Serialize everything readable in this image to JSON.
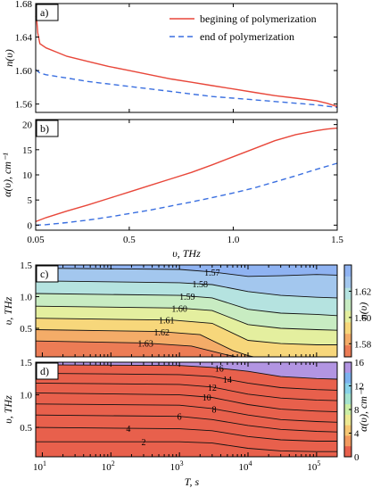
{
  "chart_data": [
    {
      "type": "line",
      "panel_tag": "a)",
      "ylabel": "n(υ)",
      "ylim": [
        1.55,
        1.68
      ],
      "xlim": [
        0.05,
        1.5
      ],
      "yticks": [
        {
          "value": 1.56,
          "label": "1.56"
        },
        {
          "value": 1.6,
          "label": "1.60"
        },
        {
          "value": 1.64,
          "label": "1.64"
        },
        {
          "value": 1.68,
          "label": "1.68"
        }
      ],
      "legend_position": "top-right",
      "series": [
        {
          "name": "begining of polymerization",
          "color": "#e8473a",
          "style": "solid",
          "x": [
            0.05,
            0.055,
            0.06,
            0.07,
            0.1,
            0.15,
            0.2,
            0.3,
            0.4,
            0.5,
            0.6,
            0.7,
            0.8,
            0.9,
            1.0,
            1.1,
            1.2,
            1.3,
            1.4,
            1.45,
            1.5
          ],
          "y": [
            1.665,
            1.66,
            1.645,
            1.632,
            1.627,
            1.622,
            1.617,
            1.611,
            1.605,
            1.6,
            1.595,
            1.59,
            1.586,
            1.582,
            1.578,
            1.574,
            1.57,
            1.567,
            1.564,
            1.561,
            1.557
          ]
        },
        {
          "name": "end of polymerization",
          "color": "#3a6fe0",
          "style": "dashed",
          "x": [
            0.05,
            0.07,
            0.1,
            0.2,
            0.3,
            0.4,
            0.5,
            0.6,
            0.7,
            0.8,
            0.9,
            1.0,
            1.1,
            1.2,
            1.3,
            1.4,
            1.5
          ],
          "y": [
            1.601,
            1.597,
            1.595,
            1.591,
            1.587,
            1.584,
            1.581,
            1.578,
            1.575,
            1.572,
            1.569,
            1.567,
            1.565,
            1.563,
            1.561,
            1.559,
            1.556
          ]
        }
      ]
    },
    {
      "type": "line",
      "panel_tag": "b)",
      "ylabel": "α(υ), cm⁻¹",
      "xlabel": "υ, THz",
      "ylim": [
        -1,
        21
      ],
      "xlim": [
        0.05,
        1.5
      ],
      "yticks": [
        {
          "value": 0,
          "label": "0"
        },
        {
          "value": 5,
          "label": "5"
        },
        {
          "value": 10,
          "label": "10"
        },
        {
          "value": 15,
          "label": "15"
        },
        {
          "value": 20,
          "label": "20"
        }
      ],
      "xticks": [
        {
          "value": 0.05,
          "label": "0.05"
        },
        {
          "value": 0.5,
          "label": "0.5"
        },
        {
          "value": 1.0,
          "label": "1.0"
        },
        {
          "value": 1.5,
          "label": "1.5"
        }
      ],
      "series": [
        {
          "color": "#e8473a",
          "style": "solid",
          "x": [
            0.05,
            0.1,
            0.2,
            0.3,
            0.4,
            0.5,
            0.6,
            0.7,
            0.8,
            0.9,
            1.0,
            1.1,
            1.2,
            1.3,
            1.4,
            1.45,
            1.5
          ],
          "y": [
            0.7,
            1.5,
            2.8,
            4.0,
            5.3,
            6.6,
            7.9,
            9.2,
            10.5,
            12.0,
            13.6,
            15.2,
            16.8,
            18.0,
            18.8,
            19.1,
            19.3
          ]
        },
        {
          "color": "#3a6fe0",
          "style": "dashed",
          "x": [
            0.05,
            0.1,
            0.2,
            0.3,
            0.4,
            0.5,
            0.6,
            0.7,
            0.8,
            0.9,
            1.0,
            1.1,
            1.2,
            1.3,
            1.4,
            1.5
          ],
          "y": [
            0.0,
            0.1,
            0.5,
            1.0,
            1.6,
            2.3,
            3.0,
            3.8,
            4.6,
            5.5,
            6.4,
            7.4,
            8.6,
            9.8,
            11.1,
            12.3
          ]
        }
      ]
    },
    {
      "type": "heatmap",
      "panel_tag": "c)",
      "ylabel": "υ, THz",
      "colorbar_label": "n(υ)",
      "xscale": "log",
      "xlim": [
        8,
        200000
      ],
      "ylim": [
        0.05,
        1.5
      ],
      "yticks": [
        {
          "value": 0.5,
          "label": "0.5"
        },
        {
          "value": 1.0,
          "label": "1.0"
        },
        {
          "value": 1.5,
          "label": "1.5"
        }
      ],
      "colorbar_range": [
        1.57,
        1.64
      ],
      "colorbar_ticks": [
        {
          "value": 1.58,
          "label": "1.58"
        },
        {
          "value": 1.6,
          "label": "1.60"
        },
        {
          "value": 1.62,
          "label": "1.62"
        }
      ],
      "bands": [
        {
          "value": 1.565,
          "color": "#8fb3f2"
        },
        {
          "value": 1.575,
          "color": "#a3c7ee"
        },
        {
          "value": 1.585,
          "color": "#b5e3e0"
        },
        {
          "value": 1.595,
          "color": "#c8ecc2"
        },
        {
          "value": 1.605,
          "color": "#e4ef9f"
        },
        {
          "value": 1.615,
          "color": "#f7d77b"
        },
        {
          "value": 1.625,
          "color": "#f4ac68"
        },
        {
          "value": 1.635,
          "color": "#ec7c55"
        }
      ],
      "contours": [
        {
          "label": "1.57",
          "label_time": 3000,
          "points": [
            [
              8,
              1.45
            ],
            [
              1000,
              1.43
            ],
            [
              3000,
              1.39
            ],
            [
              10000,
              1.32
            ],
            [
              30000,
              1.33
            ],
            [
              100000,
              1.35
            ],
            [
              200000,
              1.34
            ]
          ]
        },
        {
          "label": "1.58",
          "label_time": 2000,
          "points": [
            [
              8,
              1.25
            ],
            [
              1000,
              1.22
            ],
            [
              3000,
              1.19
            ],
            [
              10000,
              1.08
            ],
            [
              30000,
              1.02
            ],
            [
              100000,
              0.99
            ],
            [
              200000,
              0.98
            ]
          ]
        },
        {
          "label": "1.59",
          "label_time": 1300,
          "points": [
            [
              8,
              1.05
            ],
            [
              1000,
              1.02
            ],
            [
              3000,
              0.98
            ],
            [
              10000,
              0.8
            ],
            [
              30000,
              0.74
            ],
            [
              100000,
              0.72
            ],
            [
              200000,
              0.7
            ]
          ]
        },
        {
          "label": "1.60",
          "label_time": 1000,
          "points": [
            [
              8,
              0.85
            ],
            [
              1000,
              0.82
            ],
            [
              3000,
              0.78
            ],
            [
              10000,
              0.56
            ],
            [
              30000,
              0.5
            ],
            [
              100000,
              0.48
            ],
            [
              200000,
              0.47
            ]
          ]
        },
        {
          "label": "1.61",
          "label_time": 650,
          "points": [
            [
              8,
              0.66
            ],
            [
              800,
              0.63
            ],
            [
              3000,
              0.58
            ],
            [
              10000,
              0.31
            ],
            [
              30000,
              0.26
            ],
            [
              100000,
              0.24
            ],
            [
              200000,
              0.24
            ]
          ]
        },
        {
          "label": "1.62",
          "label_time": 550,
          "points": [
            [
              8,
              0.48
            ],
            [
              500,
              0.45
            ],
            [
              2000,
              0.4
            ],
            [
              6000,
              0.15
            ],
            [
              10000,
              0.07
            ],
            [
              12000,
              0.05
            ]
          ]
        },
        {
          "label": "1.63",
          "label_time": 320,
          "points": [
            [
              8,
              0.3
            ],
            [
              300,
              0.27
            ],
            [
              1500,
              0.22
            ],
            [
              5000,
              0.08
            ],
            [
              7000,
              0.05
            ]
          ]
        }
      ]
    },
    {
      "type": "heatmap",
      "panel_tag": "d)",
      "ylabel": "υ, THz",
      "xlabel": "T, s",
      "colorbar_label": "α(υ), cm⁻¹",
      "xscale": "log",
      "xlim": [
        8,
        200000
      ],
      "ylim": [
        0.05,
        1.5
      ],
      "xticks": [
        {
          "value": 10,
          "label": "10",
          "exp": "1"
        },
        {
          "value": 100,
          "label": "10",
          "exp": "2"
        },
        {
          "value": 1000,
          "label": "10",
          "exp": "3"
        },
        {
          "value": 10000,
          "label": "10",
          "exp": "4"
        },
        {
          "value": 100000,
          "label": "10",
          "exp": "5"
        }
      ],
      "yticks": [
        {
          "value": 0.5,
          "label": "0.5"
        },
        {
          "value": 1.0,
          "label": "1.0"
        },
        {
          "value": 1.5,
          "label": "1.5"
        }
      ],
      "colorbar_range": [
        0,
        16
      ],
      "colorbar_ticks": [
        {
          "value": 0,
          "label": "0"
        },
        {
          "value": 4,
          "label": "4"
        },
        {
          "value": 8,
          "label": "8"
        },
        {
          "value": 12,
          "label": "12"
        },
        {
          "value": 16,
          "label": "16"
        }
      ],
      "bands": [
        {
          "value": 1,
          "color": "#b295e2"
        },
        {
          "value": 3,
          "color": "#7cb2ee"
        },
        {
          "value": 5,
          "color": "#88d2e8"
        },
        {
          "value": 7,
          "color": "#a5e3cf"
        },
        {
          "value": 9,
          "color": "#cbeea6"
        },
        {
          "value": 11,
          "color": "#ede993"
        },
        {
          "value": 13,
          "color": "#f6c774"
        },
        {
          "value": 15,
          "color": "#f29a5f"
        },
        {
          "value": 17,
          "color": "#e8604c"
        }
      ],
      "contours": [
        {
          "label": "2",
          "label_time": 300,
          "points": [
            [
              8,
              0.28
            ],
            [
              1000,
              0.28
            ],
            [
              3000,
              0.26
            ],
            [
              10000,
              0.18
            ],
            [
              30000,
              0.14
            ],
            [
              100000,
              0.13
            ],
            [
              200000,
              0.13
            ]
          ]
        },
        {
          "label": "4",
          "label_time": 180,
          "points": [
            [
              8,
              0.5
            ],
            [
              1000,
              0.48
            ],
            [
              3000,
              0.45
            ],
            [
              10000,
              0.36
            ],
            [
              30000,
              0.31
            ],
            [
              100000,
              0.29
            ],
            [
              200000,
              0.29
            ]
          ]
        },
        {
          "label": "6",
          "label_time": 1000,
          "points": [
            [
              8,
              0.69
            ],
            [
              1000,
              0.67
            ],
            [
              3000,
              0.62
            ],
            [
              10000,
              0.53
            ],
            [
              30000,
              0.47
            ],
            [
              100000,
              0.44
            ],
            [
              200000,
              0.43
            ]
          ]
        },
        {
          "label": "8",
          "label_time": 3200,
          "points": [
            [
              8,
              0.86
            ],
            [
              1000,
              0.84
            ],
            [
              3000,
              0.79
            ],
            [
              10000,
              0.69
            ],
            [
              30000,
              0.62
            ],
            [
              100000,
              0.59
            ],
            [
              200000,
              0.58
            ]
          ]
        },
        {
          "label": "10",
          "label_time": 2500,
          "points": [
            [
              8,
              1.03
            ],
            [
              1000,
              1.0
            ],
            [
              3000,
              0.96
            ],
            [
              10000,
              0.85
            ],
            [
              30000,
              0.78
            ],
            [
              100000,
              0.75
            ],
            [
              200000,
              0.74
            ]
          ]
        },
        {
          "label": "12",
          "label_time": 3000,
          "points": [
            [
              8,
              1.18
            ],
            [
              1000,
              1.16
            ],
            [
              3000,
              1.12
            ],
            [
              10000,
              1.01
            ],
            [
              30000,
              0.95
            ],
            [
              100000,
              0.92
            ],
            [
              200000,
              0.91
            ]
          ]
        },
        {
          "label": "14",
          "label_time": 5000,
          "points": [
            [
              8,
              1.33
            ],
            [
              1000,
              1.31
            ],
            [
              3000,
              1.28
            ],
            [
              10000,
              1.18
            ],
            [
              30000,
              1.11
            ],
            [
              100000,
              1.08
            ],
            [
              200000,
              1.07
            ]
          ]
        },
        {
          "label": "16",
          "label_time": 3800,
          "points": [
            [
              8,
              1.46
            ],
            [
              1000,
              1.45
            ],
            [
              3000,
              1.42
            ],
            [
              10000,
              1.36
            ],
            [
              30000,
              1.28
            ],
            [
              100000,
              1.25
            ],
            [
              200000,
              1.24
            ]
          ]
        }
      ]
    }
  ]
}
